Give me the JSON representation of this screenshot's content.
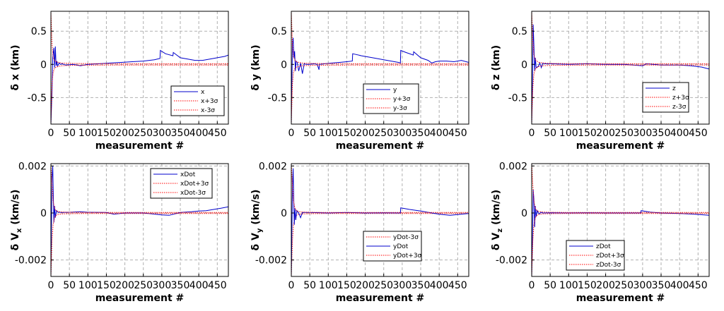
{
  "chart_data": [
    {
      "type": "line",
      "id": "dx",
      "xlabel": "measurement #",
      "ylabel": "δ x (km)",
      "xlim": [
        0,
        480
      ],
      "ylim": [
        -0.9,
        0.8
      ],
      "xticks": [
        0,
        50,
        100,
        150,
        200,
        250,
        300,
        350,
        400,
        450
      ],
      "yticks": [
        -0.5,
        0,
        0.5
      ],
      "yticklabels": [
        "-0.5",
        "0",
        "0.5"
      ],
      "grid": true,
      "legend": {
        "placement": "lower-right"
      },
      "series": [
        {
          "name": "x",
          "style": "solid",
          "color": "#0000cc",
          "x": [
            0,
            3,
            5,
            8,
            10,
            12,
            14,
            16,
            18,
            22,
            26,
            30,
            35,
            40,
            60,
            80,
            100,
            130,
            160,
            190,
            220,
            250,
            280,
            295,
            296,
            310,
            330,
            331,
            350,
            370,
            390,
            410,
            430,
            450,
            470,
            480
          ],
          "y": [
            -0.9,
            -0.4,
            0.1,
            0.25,
            -0.05,
            0.27,
            -0.02,
            0.05,
            -0.03,
            0.02,
            0.0,
            0.01,
            0.0,
            -0.01,
            0.0,
            -0.02,
            0.0,
            0.01,
            0.02,
            0.03,
            0.04,
            0.05,
            0.07,
            0.09,
            0.21,
            0.16,
            0.13,
            0.18,
            0.1,
            0.08,
            0.06,
            0.06,
            0.08,
            0.1,
            0.12,
            0.14
          ]
        },
        {
          "name": "x+3σ",
          "style": "dotted",
          "color": "#ff0000",
          "x": [
            0,
            3,
            6,
            10,
            14,
            20,
            30,
            50,
            100,
            200,
            300,
            400,
            480
          ],
          "y": [
            0.8,
            0.3,
            0.12,
            0.06,
            0.04,
            0.03,
            0.02,
            0.015,
            0.012,
            0.01,
            0.01,
            0.01,
            0.01
          ]
        },
        {
          "name": "x-3σ",
          "style": "dotted",
          "color": "#ff0000",
          "x": [
            0,
            3,
            6,
            10,
            14,
            20,
            30,
            50,
            100,
            200,
            300,
            400,
            480
          ],
          "y": [
            -0.9,
            -0.3,
            -0.12,
            -0.06,
            -0.04,
            -0.03,
            -0.02,
            -0.015,
            -0.012,
            -0.01,
            -0.01,
            -0.01,
            -0.01
          ]
        }
      ]
    },
    {
      "type": "line",
      "id": "dy",
      "xlabel": "measurement #",
      "ylabel": "δ y (km)",
      "xlim": [
        0,
        480
      ],
      "ylim": [
        -0.9,
        0.8
      ],
      "xticks": [
        0,
        50,
        100,
        150,
        200,
        250,
        300,
        350,
        400,
        450
      ],
      "yticks": [
        -0.5,
        0,
        0.5
      ],
      "yticklabels": [
        "-0.5",
        "0",
        "0.5"
      ],
      "grid": true,
      "legend": {
        "placement": "lower-right"
      },
      "series": [
        {
          "name": "y",
          "style": "solid",
          "color": "#0000cc",
          "x": [
            0,
            3,
            5,
            7,
            9,
            11,
            13,
            16,
            20,
            25,
            30,
            35,
            40,
            50,
            60,
            70,
            75,
            76,
            90,
            110,
            130,
            150,
            165,
            166,
            190,
            220,
            250,
            270,
            290,
            295,
            296,
            310,
            330,
            331,
            350,
            370,
            380,
            390,
            400,
            420,
            440,
            460,
            480
          ],
          "y": [
            -0.9,
            0.3,
            0.4,
            0.1,
            0.2,
            -0.1,
            0.05,
            0.03,
            -0.1,
            0.02,
            -0.14,
            0.01,
            0.0,
            0.0,
            0.01,
            0.0,
            -0.08,
            0.0,
            0.01,
            0.02,
            0.03,
            0.04,
            0.05,
            0.16,
            0.13,
            0.1,
            0.07,
            0.05,
            0.03,
            0.02,
            0.21,
            0.18,
            0.14,
            0.19,
            0.1,
            0.06,
            0.02,
            0.04,
            0.05,
            0.05,
            0.04,
            0.06,
            0.03
          ]
        },
        {
          "name": "y+3σ",
          "style": "dotted",
          "color": "#ff0000",
          "x": [
            0,
            3,
            6,
            10,
            14,
            20,
            30,
            50,
            100,
            200,
            300,
            400,
            480
          ],
          "y": [
            0.8,
            0.3,
            0.12,
            0.06,
            0.04,
            0.03,
            0.02,
            0.015,
            0.012,
            0.01,
            0.01,
            0.01,
            0.01
          ]
        },
        {
          "name": "y-3σ",
          "style": "dotted",
          "color": "#ff0000",
          "x": [
            0,
            3,
            6,
            10,
            14,
            20,
            30,
            50,
            100,
            200,
            300,
            400,
            480
          ],
          "y": [
            -0.9,
            -0.3,
            -0.12,
            -0.06,
            -0.04,
            -0.03,
            -0.02,
            -0.015,
            -0.012,
            -0.01,
            -0.01,
            -0.01,
            -0.01
          ]
        }
      ]
    },
    {
      "type": "line",
      "id": "dz",
      "xlabel": "measurement #",
      "ylabel": "δ z (km)",
      "xlim": [
        0,
        480
      ],
      "ylim": [
        -0.9,
        0.8
      ],
      "xticks": [
        0,
        50,
        100,
        150,
        200,
        250,
        300,
        350,
        400,
        450
      ],
      "yticks": [
        -0.5,
        0,
        0.5
      ],
      "yticklabels": [
        "-0.5",
        "0",
        "0.5"
      ],
      "grid": true,
      "legend": {
        "placement": "lower-right"
      },
      "series": [
        {
          "name": "z",
          "style": "solid",
          "color": "#0000cc",
          "x": [
            0,
            2,
            4,
            6,
            8,
            10,
            12,
            15,
            18,
            22,
            26,
            30,
            35,
            50,
            100,
            150,
            200,
            250,
            300,
            310,
            350,
            400,
            430,
            460,
            480
          ],
          "y": [
            -0.9,
            -0.4,
            0.6,
            0.3,
            -0.1,
            0.1,
            -0.05,
            -0.04,
            -0.03,
            0.02,
            -0.05,
            0.02,
            0.01,
            0.01,
            0.0,
            0.01,
            0.0,
            0.0,
            -0.02,
            0.01,
            -0.01,
            -0.01,
            -0.02,
            -0.04,
            -0.07
          ]
        },
        {
          "name": "z+3σ",
          "style": "dotted",
          "color": "#ff0000",
          "x": [
            0,
            3,
            6,
            10,
            14,
            20,
            30,
            50,
            100,
            200,
            300,
            400,
            480
          ],
          "y": [
            0.8,
            0.35,
            0.15,
            0.07,
            0.05,
            0.03,
            0.02,
            0.015,
            0.012,
            0.01,
            0.01,
            0.01,
            0.01
          ]
        },
        {
          "name": "z-3σ",
          "style": "dotted",
          "color": "#ff0000",
          "x": [
            0,
            3,
            6,
            10,
            14,
            20,
            30,
            50,
            100,
            200,
            300,
            400,
            480
          ],
          "y": [
            -0.9,
            -0.35,
            -0.15,
            -0.07,
            -0.05,
            -0.03,
            -0.02,
            -0.015,
            -0.012,
            -0.01,
            -0.01,
            -0.01,
            -0.01
          ]
        }
      ]
    },
    {
      "type": "line",
      "id": "dvx",
      "xlabel": "measurement #",
      "ylabel": "δ V",
      "ylabel_sub": "x",
      "ylabel_unit": " (km/s)",
      "xlim": [
        0,
        480
      ],
      "ylim": [
        -0.0027,
        0.0021
      ],
      "xticks": [
        0,
        50,
        100,
        150,
        200,
        250,
        300,
        350,
        400,
        450
      ],
      "yticks": [
        -0.002,
        0,
        0.002
      ],
      "yticklabels": [
        "-0.002",
        "0",
        "0.002"
      ],
      "grid": true,
      "legend": {
        "placement": "upper-right"
      },
      "series": [
        {
          "name": "xDot",
          "style": "solid",
          "color": "#0000cc",
          "x": [
            0,
            3,
            5,
            8,
            10,
            12,
            15,
            20,
            30,
            50,
            80,
            100,
            150,
            170,
            200,
            250,
            300,
            320,
            350,
            380,
            400,
            420,
            440,
            460,
            480
          ],
          "y": [
            -0.0027,
            0.0015,
            0.002,
            -0.0004,
            0.0003,
            -0.0002,
            0.0001,
            3e-05,
            2e-05,
            3e-05,
            5e-05,
            3e-05,
            2e-05,
            -5e-05,
            0.0,
            0.0,
            -8e-05,
            -0.0001,
            2e-05,
            5e-05,
            8e-05,
            0.0001,
            0.00015,
            0.0002,
            0.00026
          ]
        },
        {
          "name": "xDot+3σ",
          "style": "dotted",
          "color": "#ff0000",
          "x": [
            0,
            3,
            6,
            10,
            14,
            20,
            30,
            50,
            100,
            200,
            300,
            400,
            480
          ],
          "y": [
            0.0021,
            0.0012,
            0.0005,
            0.0002,
            0.0001,
            6e-05,
            4e-05,
            3e-05,
            2e-05,
            2e-05,
            2e-05,
            2e-05,
            2e-05
          ]
        },
        {
          "name": "xDot-3σ",
          "style": "dotted",
          "color": "#ff0000",
          "x": [
            0,
            3,
            6,
            10,
            14,
            20,
            30,
            50,
            100,
            200,
            300,
            400,
            480
          ],
          "y": [
            -0.0027,
            -0.0012,
            -0.0005,
            -0.0002,
            -0.0001,
            -6e-05,
            -4e-05,
            -3e-05,
            -2e-05,
            -2e-05,
            -2e-05,
            -2e-05,
            -2e-05
          ]
        }
      ]
    },
    {
      "type": "line",
      "id": "dvy",
      "xlabel": "measurement #",
      "ylabel": "δ V",
      "ylabel_sub": "y",
      "ylabel_unit": " (km/s)",
      "xlim": [
        0,
        480
      ],
      "ylim": [
        -0.0027,
        0.0021
      ],
      "xticks": [
        0,
        50,
        100,
        150,
        200,
        250,
        300,
        350,
        400,
        450
      ],
      "yticks": [
        -0.002,
        0,
        0.002
      ],
      "yticklabels": [
        "-0.002",
        "0",
        "0.002"
      ],
      "grid": true,
      "legend": {
        "placement": "lower-right"
      },
      "series": [
        {
          "name": "yDot-3σ",
          "style": "dotted",
          "color": "#ff0000",
          "x": [
            0,
            3,
            6,
            10,
            14,
            20,
            30,
            50,
            100,
            200,
            300,
            400,
            480
          ],
          "y": [
            -0.0027,
            -0.0012,
            -0.0005,
            -0.0002,
            -0.0001,
            -6e-05,
            -4e-05,
            -3e-05,
            -2e-05,
            -2e-05,
            -2e-05,
            -2e-05,
            -2e-05
          ]
        },
        {
          "name": "yDot",
          "style": "solid",
          "color": "#0000cc",
          "x": [
            0,
            3,
            5,
            8,
            10,
            12,
            15,
            20,
            25,
            30,
            50,
            100,
            150,
            200,
            250,
            295,
            296,
            320,
            350,
            380,
            400,
            430,
            460,
            480
          ],
          "y": [
            -0.0027,
            0.001,
            0.0019,
            -0.0005,
            0.0002,
            -0.0003,
            0.0001,
            0.0,
            -0.0002,
            2e-05,
            2e-05,
            0.0,
            2e-05,
            0.0,
            1e-05,
            0.0,
            0.00022,
            0.00015,
            8e-05,
            0.0,
            -5e-05,
            -0.0001,
            -5e-05,
            -2e-05
          ]
        },
        {
          "name": "yDot+3σ",
          "style": "dotted",
          "color": "#ff0000",
          "x": [
            0,
            3,
            6,
            10,
            14,
            20,
            30,
            50,
            100,
            200,
            300,
            400,
            480
          ],
          "y": [
            0.0021,
            0.0012,
            0.0005,
            0.0002,
            0.0001,
            6e-05,
            4e-05,
            3e-05,
            2e-05,
            2e-05,
            2e-05,
            2e-05,
            2e-05
          ]
        }
      ]
    },
    {
      "type": "line",
      "id": "dvz",
      "xlabel": "measurement #",
      "ylabel": "δ V",
      "ylabel_sub": "z",
      "ylabel_unit": " (km/s)",
      "xlim": [
        0,
        480
      ],
      "ylim": [
        -0.0027,
        0.0021
      ],
      "xticks": [
        0,
        50,
        100,
        150,
        200,
        250,
        300,
        350,
        400,
        450
      ],
      "yticks": [
        -0.002,
        0,
        0.002
      ],
      "yticklabels": [
        "-0.002",
        "0",
        "0.002"
      ],
      "grid": true,
      "legend": {
        "placement": "lower-left"
      },
      "series": [
        {
          "name": "zDot",
          "style": "solid",
          "color": "#0000cc",
          "x": [
            0,
            2,
            4,
            6,
            8,
            10,
            12,
            15,
            20,
            25,
            30,
            50,
            100,
            150,
            200,
            250,
            295,
            296,
            320,
            350,
            400,
            440,
            480
          ],
          "y": [
            -0.0027,
            -0.0013,
            0.001,
            0.0006,
            -0.0006,
            0.0003,
            -0.00015,
            0.0001,
            -5e-05,
            3e-05,
            0.0,
            1e-05,
            0.0,
            1e-05,
            0.0,
            0.0,
            0.0,
            0.0001,
            4e-05,
            0.0,
            -2e-05,
            -5e-05,
            -0.0001
          ]
        },
        {
          "name": "zDot+3σ",
          "style": "dotted",
          "color": "#ff0000",
          "x": [
            0,
            3,
            6,
            10,
            14,
            20,
            30,
            50,
            100,
            200,
            300,
            400,
            480
          ],
          "y": [
            0.0021,
            0.0012,
            0.0005,
            0.0002,
            0.0001,
            6e-05,
            4e-05,
            3e-05,
            2e-05,
            2e-05,
            2e-05,
            2e-05,
            2e-05
          ]
        },
        {
          "name": "zDot-3σ",
          "style": "dotted",
          "color": "#ff0000",
          "x": [
            0,
            3,
            6,
            10,
            14,
            20,
            30,
            50,
            100,
            200,
            300,
            400,
            480
          ],
          "y": [
            -0.0027,
            -0.0012,
            -0.0005,
            -0.0002,
            -0.0001,
            -6e-05,
            -4e-05,
            -3e-05,
            -2e-05,
            -2e-05,
            -2e-05,
            -2e-05,
            -2e-05
          ]
        }
      ]
    }
  ]
}
